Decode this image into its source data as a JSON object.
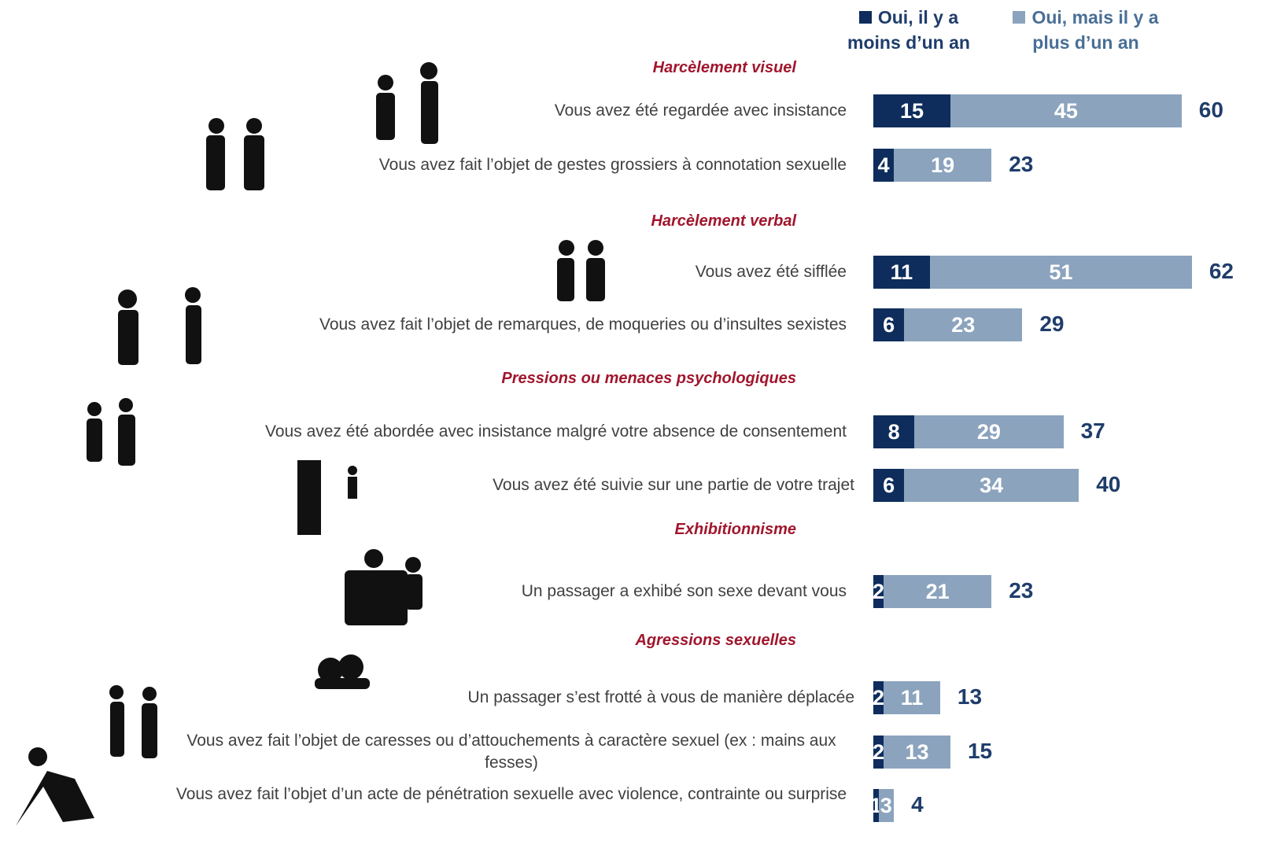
{
  "chart_data": {
    "type": "stacked-bar",
    "section_titles": [
      "Harcèlement visuel",
      "Harcèlement verbal",
      "Pressions ou menaces psychologiques",
      "Exhibitionnisme",
      "Agressions sexuelles"
    ],
    "categories": [
      "Vous avez été regardée avec insistance",
      "Vous avez fait l’objet de gestes grossiers à connotation sexuelle",
      "Vous avez été sifflée",
      "Vous avez fait l’objet de remarques, de moqueries ou d’insultes sexistes",
      "Vous avez été abordée avec insistance malgré votre absence de consentement",
      "Vous avez été suivie sur une partie de votre trajet",
      "Un passager a exhibé son sexe devant vous",
      "Un passager s’est frotté à vous de manière déplacée",
      "Vous avez fait l’objet de caresses ou d’attouchements à caractère sexuel (ex : mains aux fesses)",
      "Vous avez fait l’objet d’un acte de pénétration sexuelle avec violence, contrainte ou surprise"
    ],
    "series": [
      {
        "name": "Oui, il y a moins d’un an",
        "color": "#0e2d5c",
        "values": [
          15,
          4,
          11,
          6,
          8,
          6,
          2,
          2,
          2,
          1
        ]
      },
      {
        "name": "Oui, mais il y a plus d’un an",
        "color": "#8ba3bd",
        "values": [
          45,
          19,
          51,
          23,
          29,
          34,
          21,
          11,
          13,
          3
        ]
      }
    ],
    "totals": [
      60,
      23,
      62,
      29,
      37,
      40,
      23,
      13,
      15,
      4
    ],
    "legend": "top-right"
  }
}
